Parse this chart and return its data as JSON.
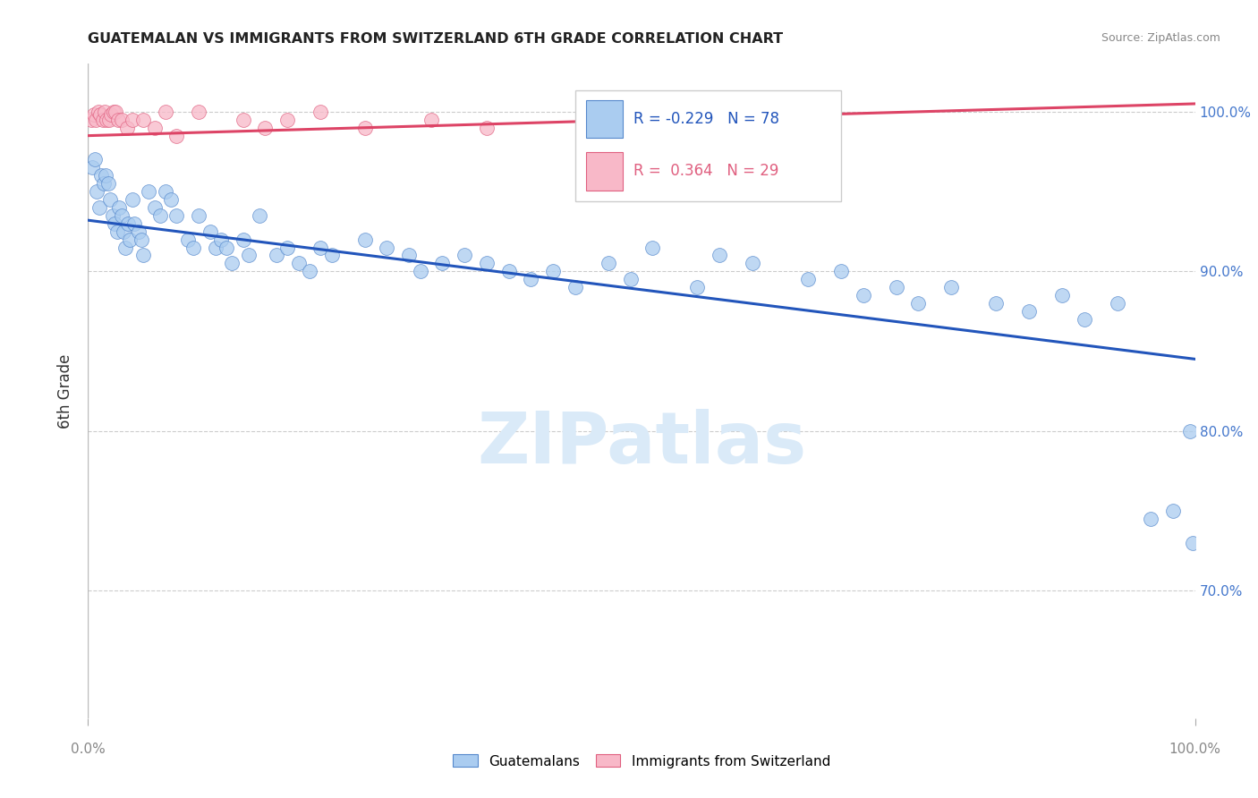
{
  "title": "GUATEMALAN VS IMMIGRANTS FROM SWITZERLAND 6TH GRADE CORRELATION CHART",
  "source": "Source: ZipAtlas.com",
  "ylabel": "6th Grade",
  "blue_R": "-0.229",
  "blue_N": "78",
  "pink_R": "0.364",
  "pink_N": "29",
  "legend_blue": "Guatemalans",
  "legend_pink": "Immigrants from Switzerland",
  "blue_color": "#aaccf0",
  "blue_edge_color": "#5588cc",
  "pink_color": "#f8b8c8",
  "pink_edge_color": "#e06080",
  "blue_trend_color": "#2255bb",
  "pink_trend_color": "#dd4466",
  "watermark_color": "#daeaf8",
  "grid_color": "#cccccc",
  "ytick_color": "#4477cc",
  "xtick_color": "#888888",
  "ylabel_color": "#333333",
  "title_color": "#222222",
  "source_color": "#888888",
  "ylim_bottom": 62,
  "ylim_top": 103,
  "xlim_left": 0,
  "xlim_right": 100,
  "yticks": [
    70.0,
    80.0,
    90.0,
    100.0
  ],
  "ytick_labels": [
    "70.0%",
    "80.0%",
    "90.0%",
    "100.0%"
  ],
  "blue_trend_x0": 0,
  "blue_trend_x1": 100,
  "blue_trend_y0": 93.2,
  "blue_trend_y1": 84.5,
  "pink_trend_x0": 0,
  "pink_trend_x1": 100,
  "pink_trend_y0": 98.5,
  "pink_trend_y1": 100.5,
  "blue_x": [
    0.4,
    0.6,
    0.8,
    1.0,
    1.2,
    1.4,
    1.6,
    1.8,
    2.0,
    2.2,
    2.4,
    2.6,
    2.8,
    3.0,
    3.2,
    3.4,
    3.6,
    3.8,
    4.0,
    4.2,
    4.6,
    4.8,
    5.0,
    5.5,
    6.0,
    6.5,
    7.0,
    7.5,
    8.0,
    9.0,
    9.5,
    10.0,
    11.0,
    11.5,
    12.0,
    12.5,
    13.0,
    14.0,
    14.5,
    15.5,
    17.0,
    18.0,
    19.0,
    20.0,
    21.0,
    22.0,
    25.0,
    27.0,
    29.0,
    30.0,
    32.0,
    34.0,
    36.0,
    38.0,
    40.0,
    42.0,
    44.0,
    47.0,
    49.0,
    51.0,
    55.0,
    57.0,
    60.0,
    65.0,
    68.0,
    70.0,
    73.0,
    75.0,
    78.0,
    82.0,
    85.0,
    88.0,
    90.0,
    93.0,
    96.0,
    98.0,
    99.5,
    99.8
  ],
  "blue_y": [
    96.5,
    97.0,
    95.0,
    94.0,
    96.0,
    95.5,
    96.0,
    95.5,
    94.5,
    93.5,
    93.0,
    92.5,
    94.0,
    93.5,
    92.5,
    91.5,
    93.0,
    92.0,
    94.5,
    93.0,
    92.5,
    92.0,
    91.0,
    95.0,
    94.0,
    93.5,
    95.0,
    94.5,
    93.5,
    92.0,
    91.5,
    93.5,
    92.5,
    91.5,
    92.0,
    91.5,
    90.5,
    92.0,
    91.0,
    93.5,
    91.0,
    91.5,
    90.5,
    90.0,
    91.5,
    91.0,
    92.0,
    91.5,
    91.0,
    90.0,
    90.5,
    91.0,
    90.5,
    90.0,
    89.5,
    90.0,
    89.0,
    90.5,
    89.5,
    91.5,
    89.0,
    91.0,
    90.5,
    89.5,
    90.0,
    88.5,
    89.0,
    88.0,
    89.0,
    88.0,
    87.5,
    88.5,
    87.0,
    88.0,
    74.5,
    75.0,
    80.0,
    73.0
  ],
  "pink_x": [
    0.3,
    0.5,
    0.7,
    0.9,
    1.1,
    1.3,
    1.5,
    1.7,
    1.9,
    2.1,
    2.3,
    2.5,
    2.7,
    3.0,
    3.5,
    4.0,
    5.0,
    6.0,
    7.0,
    8.0,
    10.0,
    14.0,
    16.0,
    18.0,
    21.0,
    25.0,
    31.0,
    36.0,
    55.0
  ],
  "pink_y": [
    99.5,
    99.8,
    99.5,
    100.0,
    99.8,
    99.5,
    100.0,
    99.5,
    99.5,
    99.8,
    100.0,
    100.0,
    99.5,
    99.5,
    99.0,
    99.5,
    99.5,
    99.0,
    100.0,
    98.5,
    100.0,
    99.5,
    99.0,
    99.5,
    100.0,
    99.0,
    99.5,
    99.0,
    99.5
  ]
}
